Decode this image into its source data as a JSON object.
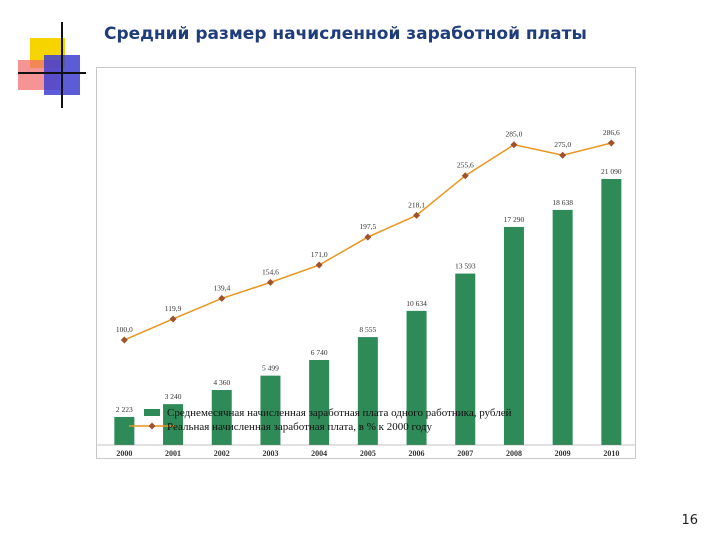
{
  "slide": {
    "title": "Средний размер начисленной заработной платы",
    "page_number": "16"
  },
  "colors": {
    "bar": "#2e8b57",
    "line": "#e8961e",
    "marker": "#a0522d",
    "title": "#1f3d7a"
  },
  "chart_data": {
    "type": "bar",
    "title": "",
    "xlabel": "",
    "ylabel": "",
    "categories": [
      "2000",
      "2001",
      "2002",
      "2003",
      "2004",
      "2005",
      "2006",
      "2007",
      "2008",
      "2009",
      "2010"
    ],
    "series": [
      {
        "name": "Среднемесячная начисленная заработная плата одного работника, рублей",
        "type": "bar",
        "values": [
          2223,
          3240,
          4360,
          5499,
          6740,
          8555,
          10634,
          13593,
          17290,
          18638,
          21090
        ],
        "labels": [
          "2 223",
          "3 240",
          "4 360",
          "5 499",
          "6 740",
          "8 555",
          "10 634",
          "13 593",
          "17 290",
          "18 638",
          "21 090"
        ]
      },
      {
        "name": "Реальная начисленная заработная плата, в % к 2000 году",
        "type": "line",
        "values": [
          100.0,
          119.9,
          139.4,
          154.6,
          171.0,
          197.5,
          218.1,
          255.6,
          285.0,
          275.0,
          286.6
        ],
        "labels": [
          "100,0",
          "119,9",
          "139,4",
          "154,6",
          "171,0",
          "197,5",
          "218,1",
          "255,6",
          "285,0",
          "275,0",
          "286,6"
        ]
      }
    ],
    "grid": false,
    "legend_position": "bottom"
  }
}
